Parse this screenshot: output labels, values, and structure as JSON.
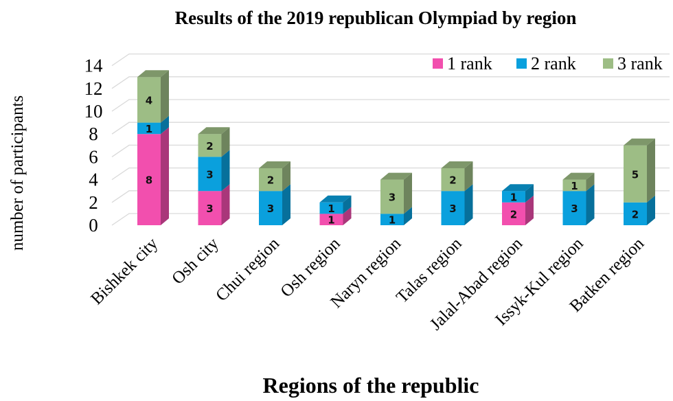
{
  "chart_data": {
    "type": "bar",
    "stacked": true,
    "three_d": true,
    "title": "Results of the 2019 republican Olympiad by region",
    "xlabel": "Regions of the republic",
    "ylabel": "number of participants",
    "ylim": [
      0,
      14
    ],
    "yticks": [
      0,
      2,
      4,
      6,
      8,
      10,
      12,
      14
    ],
    "grid": true,
    "legend_position": "top-right",
    "categories": [
      "Bishkek city",
      "Osh city",
      "Chui region",
      "Osh region",
      "Naryn region",
      "Talas region",
      "Jalal-Abad region",
      "Issyk-Kul region",
      "Batken region"
    ],
    "series": [
      {
        "name": "1 rank",
        "color": "#f24fae",
        "values": [
          8,
          3,
          0,
          1,
          0,
          0,
          2,
          0,
          0
        ]
      },
      {
        "name": "2 rank",
        "color": "#0aa0dd",
        "values": [
          1,
          3,
          3,
          1,
          1,
          3,
          1,
          3,
          2
        ]
      },
      {
        "name": "3 rank",
        "color": "#9dbd85",
        "values": [
          4,
          2,
          2,
          0,
          3,
          2,
          0,
          1,
          5
        ]
      }
    ]
  }
}
